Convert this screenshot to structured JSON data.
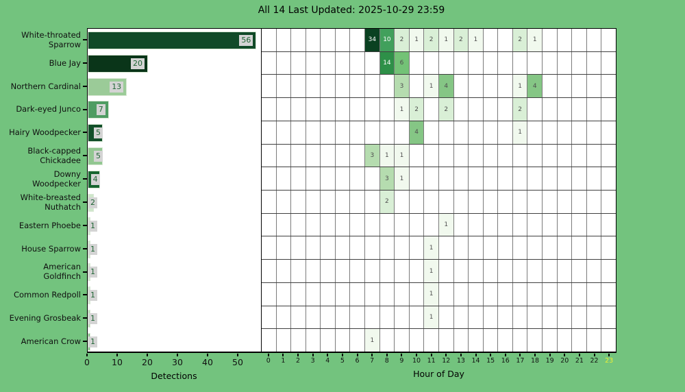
{
  "title": "All 14 Last Updated: 2025-10-29 23:59",
  "colors": {
    "background": "#73c37e",
    "plot_background": "#ffffff",
    "bar_value_box_bg": "#d4d4d4",
    "bar_value_text": "#1e6433",
    "grid_vertical": "#7a7a7a",
    "grid_horizontal": "#3f3f3f",
    "axis_border": "#000000",
    "hour_highlight": "#eef233",
    "cell_text_dark": "#4e4e4e",
    "cell_text_light": "#ffffff"
  },
  "chart_data": {
    "type": "bar+heatmap",
    "title": "All 14 Last Updated: 2025-10-29 23:59",
    "bar_xlabel": "Detections",
    "bar_x_ticks": [
      0,
      10,
      20,
      30,
      40,
      50
    ],
    "bar_xlim": [
      0,
      57.7
    ],
    "heatmap_xlabel": "Hour of Day",
    "hours": [
      0,
      1,
      2,
      3,
      4,
      5,
      6,
      7,
      8,
      9,
      10,
      11,
      12,
      13,
      14,
      15,
      16,
      17,
      18,
      19,
      20,
      21,
      22,
      23
    ],
    "highlighted_hour": 23,
    "value_colors": {
      "1": "#f1f9ee",
      "2": "#d9efd6",
      "3": "#b5dcaf",
      "4": "#85c685",
      "6": "#73c276",
      "10": "#41a05c",
      "14": "#2e9048",
      "34": "#0a4121"
    },
    "white_text_values": [
      10,
      14,
      34
    ],
    "species": [
      {
        "name": "White-throated Sparrow",
        "label_lines": [
          "White-throated",
          "Sparrow"
        ],
        "count": 56,
        "bar_color": "#114a28",
        "hours": {
          "7": 34,
          "8": 10,
          "9": 2,
          "10": 1,
          "11": 2,
          "12": 1,
          "13": 2,
          "14": 1,
          "17": 2,
          "18": 1
        }
      },
      {
        "name": "Blue Jay",
        "label_lines": [
          "Blue Jay"
        ],
        "count": 20,
        "bar_color": "#0a3519",
        "hours": {
          "8": 14,
          "9": 6
        }
      },
      {
        "name": "Northern Cardinal",
        "label_lines": [
          "Northern Cardinal"
        ],
        "count": 13,
        "bar_color": "#9bcb98",
        "hours": {
          "9": 3,
          "11": 1,
          "12": 4,
          "17": 1,
          "18": 4
        }
      },
      {
        "name": "Dark-eyed Junco",
        "label_lines": [
          "Dark-eyed Junco"
        ],
        "count": 7,
        "bar_color": "#4f9c62",
        "hours": {
          "9": 1,
          "10": 2,
          "12": 2,
          "17": 2
        }
      },
      {
        "name": "Hairy Woodpecker",
        "label_lines": [
          "Hairy Woodpecker"
        ],
        "count": 5,
        "bar_color": "#12502a",
        "hours": {
          "10": 4,
          "17": 1
        }
      },
      {
        "name": "Black-capped Chickadee",
        "label_lines": [
          "Black-capped",
          "Chickadee"
        ],
        "count": 5,
        "bar_color": "#92c791",
        "hours": {
          "7": 3,
          "8": 1,
          "9": 1
        }
      },
      {
        "name": "Downy Woodpecker",
        "label_lines": [
          "Downy",
          "Woodpecker"
        ],
        "count": 4,
        "bar_color": "#17652f",
        "hours": {
          "8": 3,
          "9": 1
        }
      },
      {
        "name": "White-breasted Nuthatch",
        "label_lines": [
          "White-breasted",
          "Nuthatch"
        ],
        "count": 2,
        "bar_color": "#cfe7cb",
        "hours": {
          "8": 2
        }
      },
      {
        "name": "Eastern Phoebe",
        "label_lines": [
          "Eastern Phoebe"
        ],
        "count": 1,
        "bar_color": "#d2e8cf",
        "hours": {
          "12": 1
        }
      },
      {
        "name": "House Sparrow",
        "label_lines": [
          "House Sparrow"
        ],
        "count": 1,
        "bar_color": "#d2e8cf",
        "hours": {
          "11": 1
        }
      },
      {
        "name": "American Goldfinch",
        "label_lines": [
          "American",
          "Goldfinch"
        ],
        "count": 1,
        "bar_color": "#d2e8cf",
        "hours": {
          "11": 1
        }
      },
      {
        "name": "Common Redpoll",
        "label_lines": [
          "Common Redpoll"
        ],
        "count": 1,
        "bar_color": "#d2e8cf",
        "hours": {
          "11": 1
        }
      },
      {
        "name": "Evening Grosbeak",
        "label_lines": [
          "Evening Grosbeak"
        ],
        "count": 1,
        "bar_color": "#b8dcb4",
        "hours": {
          "11": 1
        }
      },
      {
        "name": "American Crow",
        "label_lines": [
          "American Crow"
        ],
        "count": 1,
        "bar_color": "#7bbf80",
        "hours": {
          "7": 1
        }
      }
    ]
  }
}
